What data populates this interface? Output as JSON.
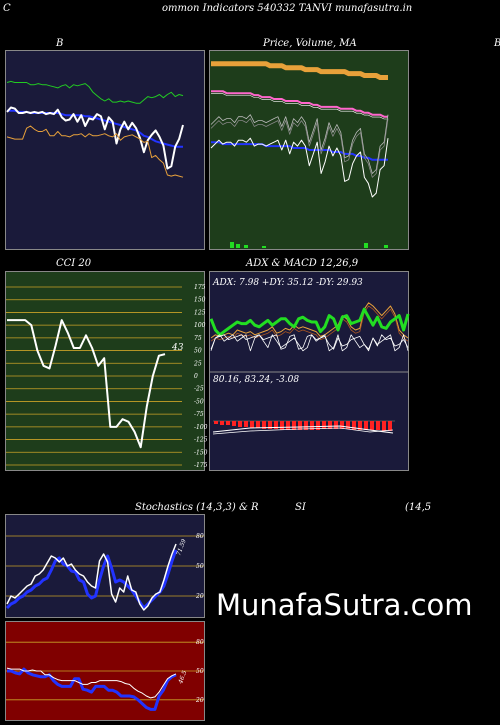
{
  "header": {
    "left_letter": "C",
    "title": "ommon  Indicators 540332  TANVI munafasutra.in"
  },
  "colors": {
    "panel_navy": "#1a1a3a",
    "panel_green": "#1e3d1b",
    "panel_red": "#800000",
    "orange": "#e8a13a",
    "green_line": "#22dd22",
    "blue_line": "#2233ff"
  },
  "watermark": "MunafaSutra.com",
  "chart_data": [
    {
      "type": "line",
      "title": "B",
      "series": [
        {
          "color": "#22cc22",
          "values": [
            72,
            73,
            72,
            72,
            72,
            72,
            70,
            70,
            71,
            70,
            70,
            69,
            68,
            67,
            69,
            70,
            67,
            70,
            69,
            70,
            71,
            68,
            63,
            60,
            57,
            55,
            57,
            54,
            54,
            55,
            54,
            55,
            54,
            53,
            53,
            56,
            59,
            58,
            59,
            61,
            58,
            61,
            63,
            59,
            61,
            60
          ]
        },
        {
          "color": "#2233ff",
          "values": [
            46,
            46,
            46,
            45,
            45,
            45,
            44,
            44,
            44,
            44,
            44,
            44,
            44,
            44,
            43,
            42,
            42,
            42,
            42,
            42,
            41,
            41,
            40,
            39,
            38,
            37,
            36,
            35,
            34,
            33,
            31,
            30,
            29,
            28,
            26,
            23,
            22,
            20,
            18,
            17,
            16,
            15,
            14,
            13,
            13,
            13
          ]
        },
        {
          "color": "#ffffff",
          "values": [
            45,
            49,
            48,
            44,
            44,
            45,
            44,
            45,
            44,
            45,
            43,
            44,
            43,
            47,
            40,
            37,
            38,
            43,
            36,
            42,
            32,
            39,
            38,
            43,
            41,
            29,
            40,
            36,
            16,
            29,
            36,
            29,
            35,
            30,
            21,
            8,
            19,
            24,
            28,
            22,
            14,
            -7,
            -5,
            13,
            20,
            33
          ]
        },
        {
          "color": "#e8a13a",
          "values": [
            22,
            21,
            20,
            20,
            20,
            30,
            32,
            29,
            27,
            27,
            29,
            23,
            23,
            27,
            23,
            23,
            22,
            24,
            24,
            25,
            22,
            25,
            23,
            23,
            24,
            25,
            23,
            22,
            25,
            19,
            22,
            23,
            24,
            22,
            20,
            17,
            18,
            3,
            5,
            1,
            -2,
            -13,
            -14,
            -13,
            -14,
            -15
          ]
        }
      ]
    },
    {
      "type": "line",
      "title": "Price,  Volume, MA",
      "series": [
        {
          "color": "#e8a13a",
          "name": "",
          "values": [
            94,
            94,
            94,
            94,
            94,
            94,
            94,
            94,
            94,
            94,
            94,
            94,
            94,
            94,
            94,
            93,
            93,
            93,
            93,
            92,
            92,
            92,
            92,
            92,
            91,
            91,
            91,
            91,
            90,
            90,
            90,
            90,
            90,
            90,
            90,
            89,
            89,
            89,
            89,
            88,
            88,
            88,
            88,
            87,
            87,
            87
          ]
        },
        {
          "color": "#ff66cc",
          "values": [
            80,
            80,
            80,
            80,
            79,
            79,
            79,
            79,
            79,
            79,
            79,
            78,
            78,
            77,
            77,
            77,
            76,
            76,
            76,
            75,
            75,
            75,
            75,
            74,
            74,
            74,
            73,
            73,
            72,
            72,
            72,
            72,
            72,
            71,
            71,
            71,
            71,
            70,
            70,
            69,
            69,
            68,
            68,
            68,
            67,
            67
          ]
        },
        {
          "color": "#2233ff",
          "values": [
            54,
            54,
            54,
            53,
            53,
            53,
            53,
            53,
            53,
            53,
            53,
            53,
            53,
            53,
            52,
            52,
            52,
            52,
            52,
            52,
            52,
            51,
            51,
            51,
            51,
            50,
            50,
            50,
            50,
            50,
            50,
            49,
            49,
            49,
            48,
            48,
            48,
            47,
            47,
            46,
            46,
            45,
            45,
            45,
            45,
            45
          ]
        },
        {
          "color": "#ffffff",
          "values": [
            51,
            53,
            55,
            53,
            54,
            54,
            52,
            55,
            55,
            54,
            56,
            52,
            53,
            53,
            52,
            53,
            54,
            55,
            50,
            55,
            48,
            54,
            52,
            55,
            52,
            42,
            48,
            54,
            38,
            44,
            52,
            47,
            51,
            47,
            34,
            35,
            43,
            47,
            49,
            36,
            33,
            26,
            28,
            40,
            42,
            56
          ]
        }
      ]
    },
    {
      "type": "line",
      "title": "CCI 20",
      "ylim": [
        -175,
        175
      ],
      "yticks": [
        175,
        150,
        125,
        100,
        75,
        50,
        25,
        0,
        -25,
        -50,
        -75,
        -100,
        -125,
        -150,
        -175
      ],
      "last_label": "43",
      "series": [
        {
          "color": "#ffffff",
          "values": [
            110,
            110,
            110,
            110,
            100,
            50,
            20,
            15,
            60,
            110,
            85,
            55,
            55,
            80,
            55,
            20,
            35,
            -100,
            -100,
            -85,
            -90,
            -110,
            -140,
            -60,
            0,
            40,
            43
          ]
        }
      ]
    },
    {
      "type": "line",
      "title": "ADX  & MACD 12,26,9",
      "labels": {
        "adx": "ADX: 7.98  +DY: 35.12  -DY: 29.93",
        "macd": "80.16,  83.24,  -3.08"
      },
      "series": [
        {
          "color": "#22dd22",
          "values": [
            52,
            45,
            42,
            44,
            46,
            48,
            50,
            49,
            49,
            51,
            48,
            47,
            49,
            51,
            48,
            50,
            52,
            52,
            49,
            47,
            52,
            53,
            51,
            50,
            50,
            44,
            47,
            54,
            52,
            45,
            53,
            54,
            49,
            50,
            51,
            58,
            53,
            48,
            53,
            47,
            46,
            50,
            52,
            54,
            45,
            55
          ]
        },
        {
          "color": "#e8a13a",
          "values": [
            40,
            42,
            41,
            42,
            43,
            42,
            45,
            44,
            43,
            44,
            42,
            43,
            44,
            45,
            47,
            43,
            44,
            46,
            45,
            48,
            46,
            47,
            46,
            45,
            44,
            41,
            42,
            44,
            46,
            48,
            54,
            52,
            47,
            45,
            46,
            58,
            62,
            60,
            57,
            54,
            57,
            60,
            55,
            45,
            42,
            40
          ]
        }
      ]
    },
    {
      "type": "line",
      "title": "Stochastics (14,3,3) & R",
      "ylim": [
        0,
        100
      ],
      "yticks": [
        80,
        50,
        20
      ],
      "last_label": "71.59",
      "series": [
        {
          "color": "#ffffff",
          "values": [
            12,
            20,
            18,
            22,
            26,
            30,
            32,
            40,
            42,
            46,
            53,
            60,
            58,
            54,
            58,
            50,
            52,
            46,
            42,
            40,
            34,
            30,
            28,
            55,
            62,
            54,
            22,
            14,
            28,
            24,
            40,
            26,
            24,
            12,
            6,
            10,
            18,
            22,
            24,
            36,
            50,
            62,
            72
          ]
        },
        {
          "color": "#2233ff",
          "values": [
            8,
            12,
            14,
            18,
            20,
            24,
            26,
            30,
            32,
            36,
            38,
            46,
            55,
            58,
            52,
            50,
            45,
            44,
            36,
            34,
            22,
            18,
            20,
            36,
            50,
            60,
            48,
            34,
            36,
            34,
            30,
            26,
            20,
            14,
            8,
            12,
            16,
            20,
            24,
            30,
            42,
            55,
            66
          ]
        }
      ]
    },
    {
      "type": "line",
      "title": "SI",
      "params": "(14,5",
      "ylim": [
        0,
        100
      ],
      "yticks": [
        80,
        50,
        20
      ],
      "last_label": "46.5",
      "series": [
        {
          "color": "#ffffff",
          "values": [
            53,
            52,
            52,
            52,
            50,
            50,
            51,
            50,
            50,
            46,
            46,
            43,
            41,
            40,
            40,
            40,
            40,
            38,
            36,
            36,
            38,
            38,
            40,
            40,
            40,
            40,
            40,
            39,
            37,
            36,
            32,
            29,
            27,
            24,
            22,
            23,
            28,
            35,
            42,
            45,
            47
          ]
        },
        {
          "color": "#2233ff",
          "values": [
            50,
            50,
            48,
            47,
            52,
            48,
            46,
            45,
            44,
            44,
            46,
            40,
            36,
            34,
            34,
            34,
            42,
            42,
            31,
            30,
            28,
            34,
            34,
            34,
            30,
            30,
            28,
            24,
            24,
            24,
            23,
            20,
            16,
            12,
            10,
            10,
            24,
            30,
            40,
            44,
            46
          ]
        }
      ]
    }
  ]
}
